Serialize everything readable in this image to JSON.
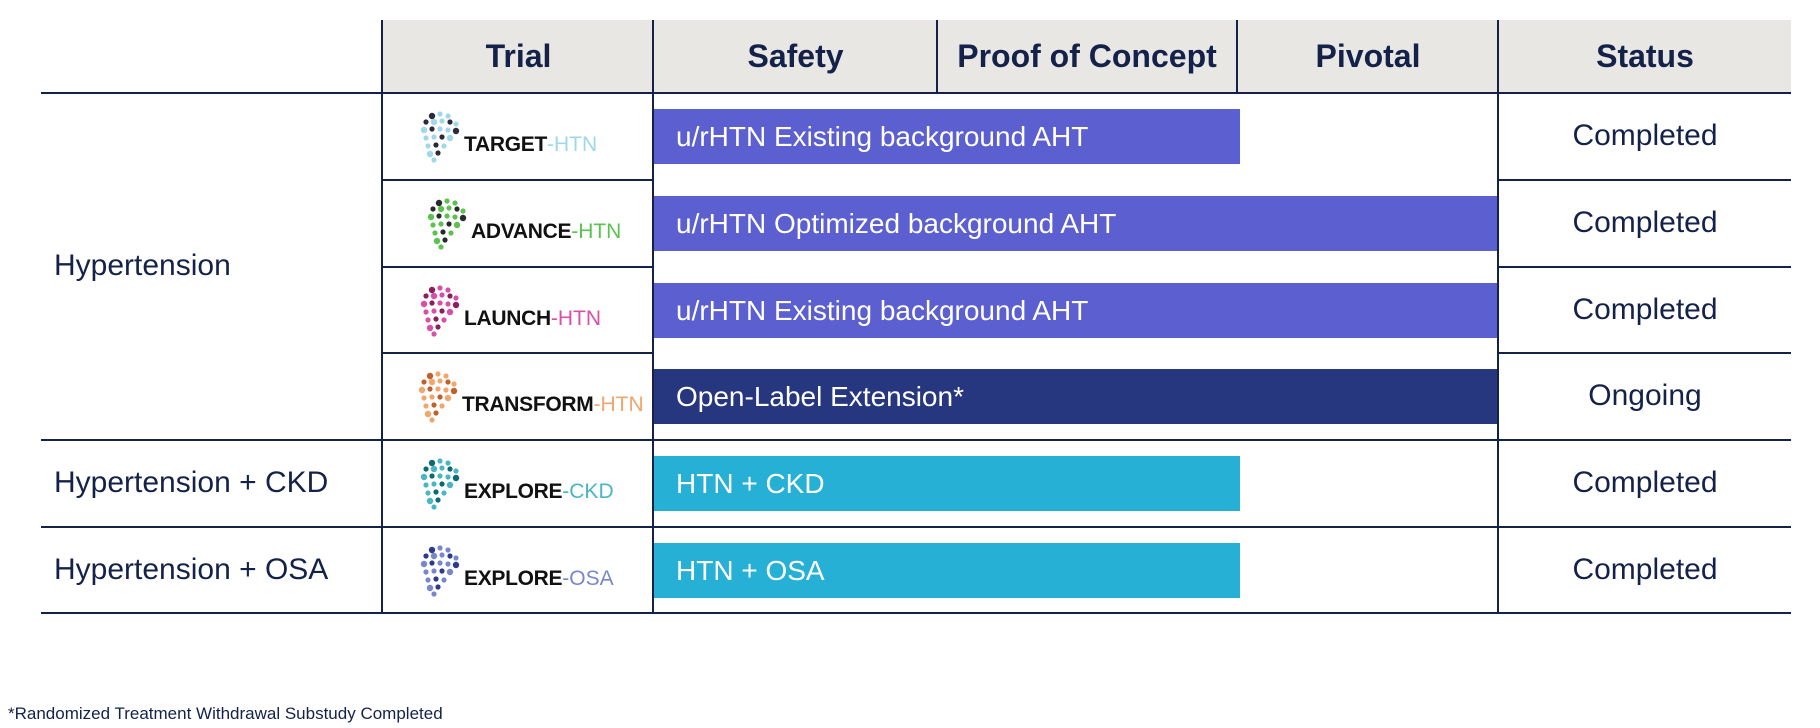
{
  "header": {
    "trial": "Trial",
    "safety": "Safety",
    "proof_of_concept": "Proof of Concept",
    "pivotal": "Pivotal",
    "status": "Status"
  },
  "indications": {
    "hypertension": "Hypertension",
    "htn_ckd": "Hypertension + CKD",
    "htn_osa": "Hypertension + OSA"
  },
  "rows": [
    {
      "logo_name": "TARGET",
      "logo_sep": "-",
      "logo_suffix": "HTN",
      "logo_color": "#9fd8ea",
      "logo_dots": "#2a2a3a",
      "bar_label": "u/rHTN Existing background AHT",
      "bar_color": "#5b5fcf",
      "status": "Completed"
    },
    {
      "logo_name": "ADVANCE",
      "logo_sep": "-",
      "logo_suffix": "HTN",
      "logo_color": "#5cc24f",
      "logo_dots": "#2a2a2a",
      "bar_label": "u/rHTN Optimized background AHT",
      "bar_color": "#5b5fcf",
      "status": "Completed"
    },
    {
      "logo_name": "LAUNCH",
      "logo_sep": "-",
      "logo_suffix": "HTN",
      "logo_color": "#d94fa8",
      "logo_dots": "#8a1f5e",
      "bar_label": "u/rHTN Existing background AHT",
      "bar_color": "#5b5fcf",
      "status": "Completed"
    },
    {
      "logo_name": "TRANSFORM",
      "logo_sep": "-",
      "logo_suffix": "HTN",
      "logo_color": "#f2a66b",
      "logo_dots": "#c0602a",
      "bar_label": "Open-Label Extension*",
      "bar_color": "#263780",
      "status": "Ongoing"
    },
    {
      "logo_name": "EXPLORE",
      "logo_sep": "-",
      "logo_suffix": "CKD",
      "logo_color": "#49b6c4",
      "logo_dots": "#0b6a73",
      "bar_label": "HTN + CKD",
      "bar_color": "#27b0d6",
      "status": "Completed"
    },
    {
      "logo_name": "EXPLORE",
      "logo_sep": "-",
      "logo_suffix": "OSA",
      "logo_color": "#7a86cc",
      "logo_dots": "#2b3a8c",
      "bar_label": "HTN + OSA",
      "bar_color": "#27b0d6",
      "status": "Completed"
    }
  ],
  "footnote": "*Randomized Treatment Withdrawal Substudy Completed"
}
